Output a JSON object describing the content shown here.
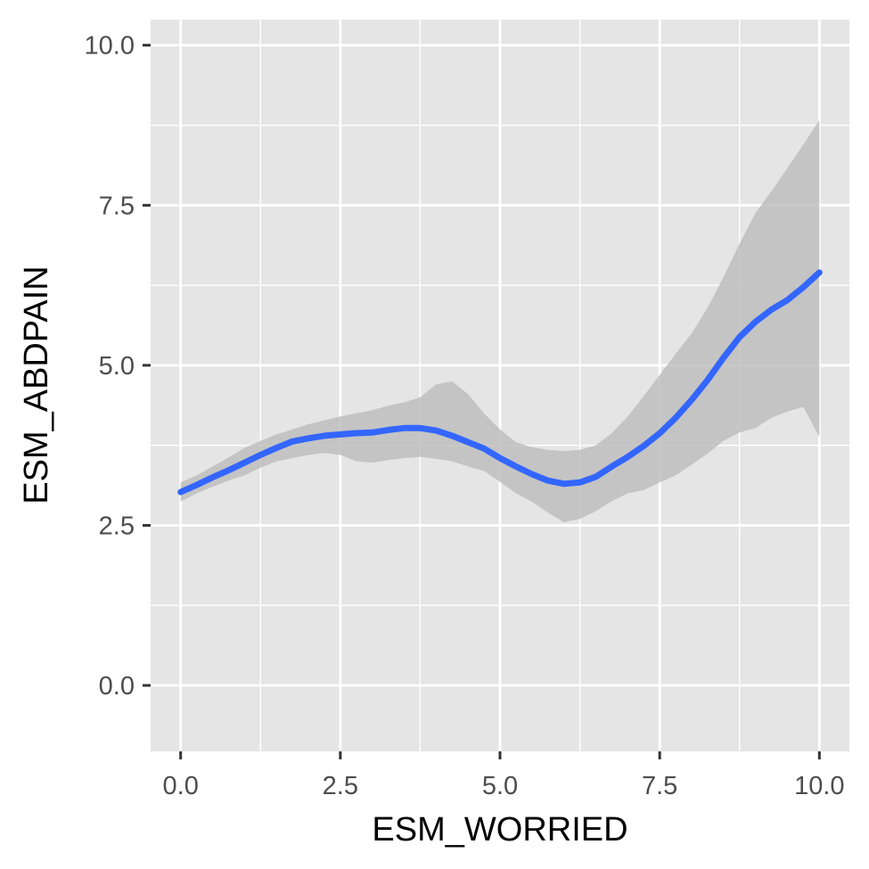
{
  "chart_data": {
    "type": "line",
    "title": "",
    "xlabel": "ESM_WORRIED",
    "ylabel": "ESM_ABDPAIN",
    "xlim": [
      -0.47,
      10.47
    ],
    "ylim": [
      -1.03,
      10.4
    ],
    "xticks": [
      "0.0",
      "2.5",
      "5.0",
      "7.5",
      "10.0"
    ],
    "yticks": [
      "0.0",
      "2.5",
      "5.0",
      "7.5",
      "10.0"
    ],
    "grid": true,
    "legend": "none",
    "series": [
      {
        "x": [
          0,
          0.25,
          0.5,
          0.75,
          1,
          1.25,
          1.5,
          1.75,
          2,
          2.25,
          2.5,
          2.75,
          3,
          3.25,
          3.5,
          3.75,
          4,
          4.25,
          4.5,
          4.75,
          5,
          5.25,
          5.5,
          5.75,
          6,
          6.25,
          6.5,
          6.75,
          7,
          7.25,
          7.5,
          7.75,
          8,
          8.25,
          8.5,
          8.75,
          9,
          9.25,
          9.5,
          9.75,
          10
        ],
        "values": [
          3.02,
          3.13,
          3.25,
          3.36,
          3.48,
          3.6,
          3.71,
          3.81,
          3.86,
          3.9,
          3.92,
          3.94,
          3.95,
          3.99,
          4.02,
          4.02,
          3.98,
          3.9,
          3.8,
          3.7,
          3.55,
          3.42,
          3.3,
          3.2,
          3.15,
          3.17,
          3.26,
          3.42,
          3.57,
          3.74,
          3.94,
          4.18,
          4.46,
          4.77,
          5.12,
          5.44,
          5.68,
          5.87,
          6.02,
          6.22,
          6.45
        ],
        "ci_lower": [
          2.87,
          3.0,
          3.1,
          3.2,
          3.28,
          3.4,
          3.5,
          3.55,
          3.6,
          3.63,
          3.6,
          3.5,
          3.48,
          3.52,
          3.55,
          3.57,
          3.54,
          3.5,
          3.42,
          3.35,
          3.18,
          3.0,
          2.87,
          2.7,
          2.55,
          2.6,
          2.72,
          2.88,
          3.0,
          3.05,
          3.17,
          3.28,
          3.45,
          3.62,
          3.82,
          3.95,
          4.02,
          4.18,
          4.28,
          4.35,
          3.88
        ],
        "ci_upper": [
          3.17,
          3.28,
          3.42,
          3.56,
          3.71,
          3.82,
          3.92,
          4.0,
          4.08,
          4.14,
          4.2,
          4.25,
          4.3,
          4.37,
          4.42,
          4.5,
          4.7,
          4.75,
          4.55,
          4.25,
          4.0,
          3.8,
          3.72,
          3.68,
          3.66,
          3.68,
          3.75,
          3.94,
          4.2,
          4.52,
          4.85,
          5.18,
          5.5,
          5.9,
          6.38,
          6.9,
          7.38,
          7.72,
          8.08,
          8.45,
          8.83
        ]
      }
    ],
    "colors": {
      "panel": "#e5e5e5",
      "grid": "#ffffff",
      "line": "#3366ff",
      "ribbon": "#bebebe",
      "tick": "#333333"
    }
  }
}
